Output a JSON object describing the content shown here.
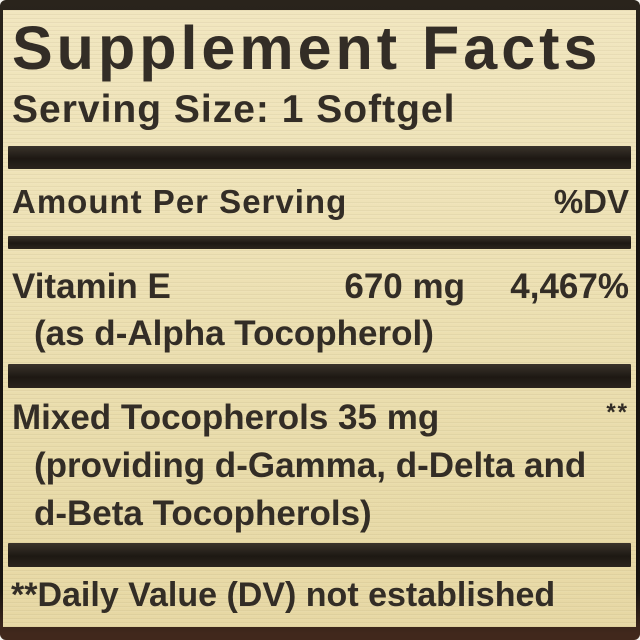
{
  "colors": {
    "background": "#ece0b2",
    "text": "#332d26",
    "bar": "#26211b",
    "frame": "#181410"
  },
  "label": {
    "title": "Supplement Facts",
    "serving_size": "Serving Size: 1 Softgel",
    "header": {
      "amount": "Amount Per Serving",
      "dv": "%DV"
    },
    "nutrients": [
      {
        "name": "Vitamin E",
        "amount": "670 mg",
        "dv": "4,467%",
        "detail": "(as d-Alpha Tocopherol)"
      },
      {
        "name": "Mixed Tocopherols 35 mg",
        "dv": "**",
        "detail_lines": [
          "(providing d-Gamma, d-Delta and",
          "d-Beta Tocopherols)"
        ]
      }
    ],
    "footnote": "**Daily Value (DV) not established"
  }
}
